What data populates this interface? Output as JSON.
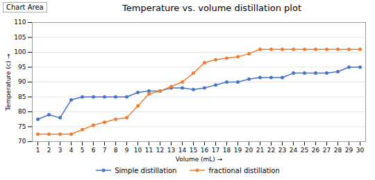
{
  "chart_data": {
    "type": "line",
    "title": "Temperature vs. volume distillation plot",
    "xlabel": "Volume (mL)",
    "ylabel": "Temperature (c)",
    "annotations": [
      "Chart Area"
    ],
    "x": [
      1,
      2,
      3,
      4,
      5,
      6,
      7,
      8,
      9,
      10,
      11,
      12,
      13,
      14,
      15,
      16,
      17,
      18,
      19,
      20,
      21,
      22,
      23,
      24,
      25,
      26,
      27,
      28,
      29,
      30
    ],
    "series": [
      {
        "name": "Simple distillation",
        "color": "#4472C4",
        "values": [
          77.5,
          79,
          78,
          84,
          85,
          85,
          85,
          85,
          85,
          86.5,
          87,
          87,
          88,
          88,
          87.5,
          88,
          89,
          90,
          90,
          91,
          91.5,
          91.5,
          91.5,
          93,
          93,
          93,
          93,
          93.5,
          95,
          95
        ]
      },
      {
        "name": "fractional distillation",
        "color": "#ED7D31",
        "values": [
          72.5,
          72.5,
          72.5,
          72.5,
          74,
          75.5,
          76.5,
          77.5,
          78,
          82,
          86,
          87,
          88.5,
          90,
          93,
          96.5,
          97.5,
          98,
          98.5,
          99.5,
          101,
          101,
          101,
          101,
          101,
          101,
          101,
          101,
          101,
          101
        ]
      }
    ],
    "marker": "circle",
    "xlim": [
      0.5,
      30.5
    ],
    "xticks": [
      1,
      2,
      3,
      4,
      5,
      6,
      7,
      8,
      9,
      10,
      11,
      12,
      13,
      14,
      15,
      16,
      17,
      18,
      19,
      20,
      21,
      22,
      23,
      24,
      25,
      26,
      27,
      28,
      29,
      30
    ],
    "ylim": [
      70,
      110
    ],
    "yticks": [
      70,
      75,
      80,
      85,
      90,
      95,
      100,
      105,
      110
    ],
    "grid": "y",
    "legend": "bottom"
  }
}
